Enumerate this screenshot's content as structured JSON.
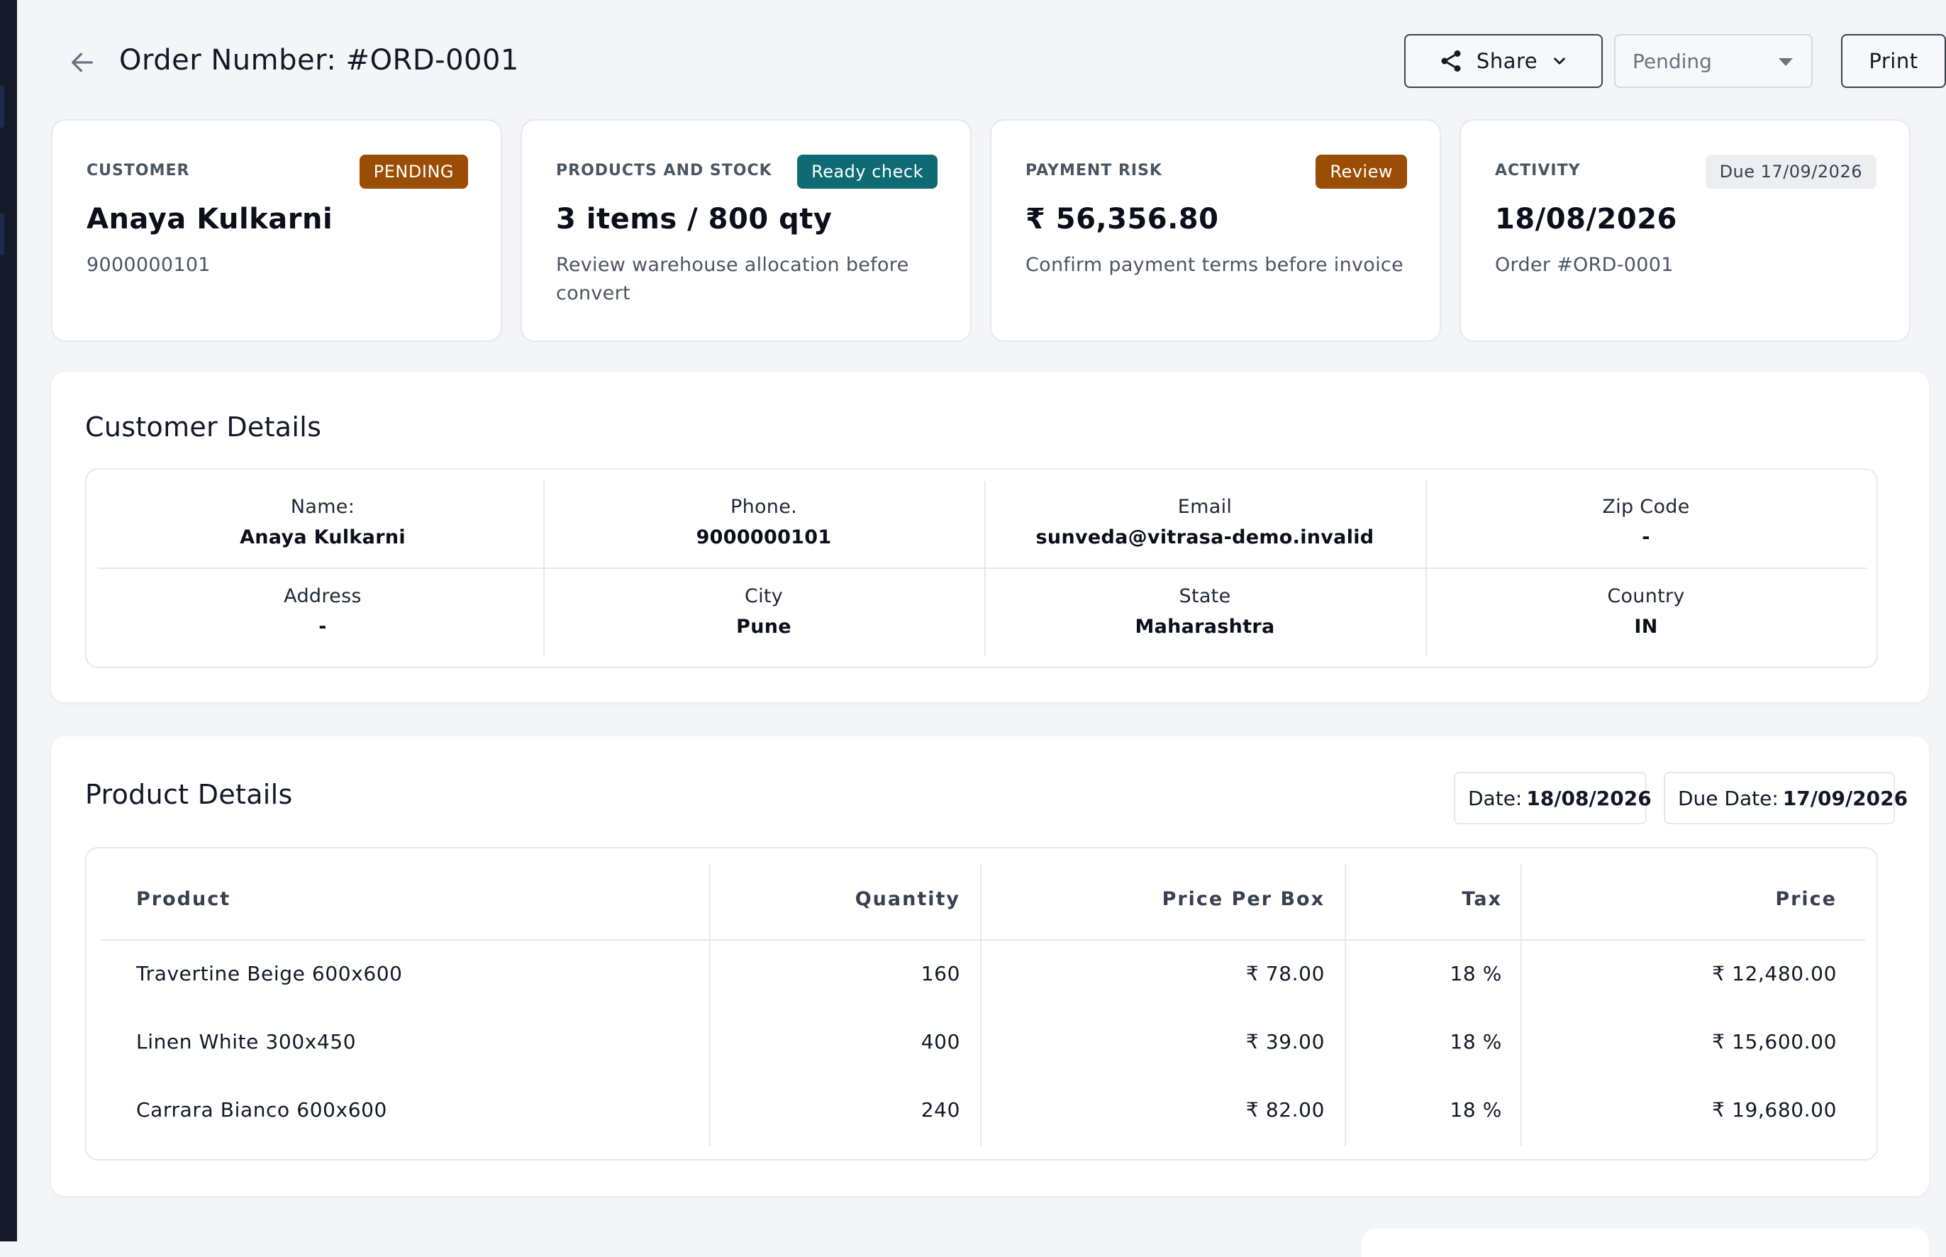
{
  "header": {
    "title": "Order Number: #ORD-0001",
    "share_label": "Share",
    "status_value": "Pending",
    "print_label": "Print"
  },
  "cards": [
    {
      "label": "CUSTOMER",
      "badge": "PENDING",
      "value": "Anaya Kulkarni",
      "sub": "9000000101"
    },
    {
      "label": "PRODUCTS AND STOCK",
      "badge": "Ready check",
      "value": "3 items / 800 qty",
      "sub": "Review warehouse allocation before convert"
    },
    {
      "label": "PAYMENT RISK",
      "badge": "Review",
      "value": "₹ 56,356.80",
      "sub": "Confirm payment terms before invoice"
    },
    {
      "label": "ACTIVITY",
      "badge": "Due 17/09/2026",
      "value": "18/08/2026",
      "sub": "Order #ORD-0001"
    }
  ],
  "customer_details": {
    "title": "Customer Details",
    "fields": [
      {
        "label": "Name:",
        "value": "Anaya Kulkarni"
      },
      {
        "label": "Phone.",
        "value": "9000000101"
      },
      {
        "label": "Email",
        "value": "sunveda@vitrasa-demo.invalid"
      },
      {
        "label": "Zip Code",
        "value": "-"
      },
      {
        "label": "Address",
        "value": "-"
      },
      {
        "label": "City",
        "value": "Pune"
      },
      {
        "label": "State",
        "value": "Maharashtra"
      },
      {
        "label": "Country",
        "value": "IN"
      }
    ]
  },
  "product_details": {
    "title": "Product Details",
    "date_label": "Date:",
    "date_value": "18/08/2026",
    "due_label": "Due Date:",
    "due_value": "17/09/2026",
    "columns": [
      "Product",
      "Quantity",
      "Price Per Box",
      "Tax",
      "Price"
    ],
    "rows": [
      {
        "product": "Travertine Beige 600x600",
        "quantity": "160",
        "price_per_box": "₹ 78.00",
        "tax": "18 %",
        "price": "₹ 12,480.00"
      },
      {
        "product": "Linen White 300x450",
        "quantity": "400",
        "price_per_box": "₹ 39.00",
        "tax": "18 %",
        "price": "₹ 15,600.00"
      },
      {
        "product": "Carrara Bianco 600x600",
        "quantity": "240",
        "price_per_box": "₹ 82.00",
        "tax": "18 %",
        "price": "₹ 19,680.00"
      }
    ]
  },
  "colors": {
    "badge_pending": "#9a4d05",
    "badge_ready": "#0f6b73",
    "badge_review": "#9a4d05",
    "background": "#f4f5f8"
  }
}
